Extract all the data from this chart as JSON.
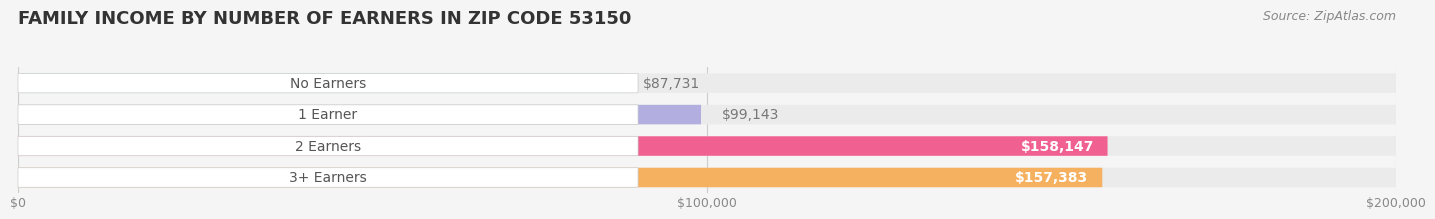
{
  "title": "FAMILY INCOME BY NUMBER OF EARNERS IN ZIP CODE 53150",
  "source": "Source: ZipAtlas.com",
  "categories": [
    "No Earners",
    "1 Earner",
    "2 Earners",
    "3+ Earners"
  ],
  "values": [
    87731,
    99143,
    158147,
    157383
  ],
  "bar_colors": [
    "#7dd4cc",
    "#b3aee0",
    "#f06090",
    "#f5b060"
  ],
  "label_colors": [
    "#7dd4cc",
    "#b3aee0",
    "#f06090",
    "#f5b060"
  ],
  "value_labels": [
    "$87,731",
    "$99,143",
    "$158,147",
    "$157,383"
  ],
  "xlim": [
    0,
    200000
  ],
  "xticks": [
    0,
    100000,
    200000
  ],
  "xtick_labels": [
    "$0",
    "$100,000",
    "$200,000"
  ],
  "bg_color": "#f5f5f5",
  "bar_bg_color": "#ebebeb",
  "title_fontsize": 13,
  "label_fontsize": 10,
  "value_fontsize": 10,
  "source_fontsize": 9
}
